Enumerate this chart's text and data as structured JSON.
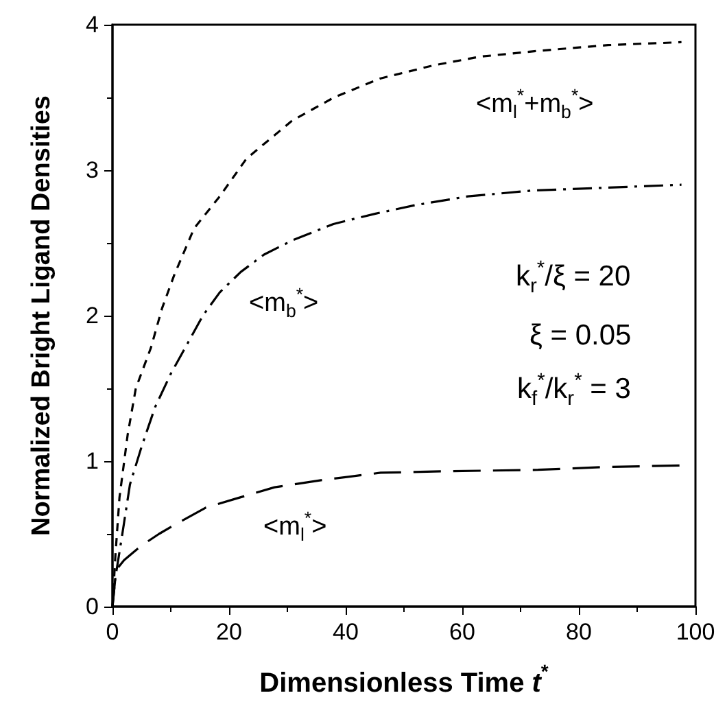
{
  "chart_data": {
    "type": "line",
    "xlabel": "Dimensionless Time t$^{*}$",
    "ylabel": "Normalized Bright Ligand Densities",
    "xlim": [
      0,
      100
    ],
    "ylim": [
      0,
      4
    ],
    "xticks": [
      0,
      20,
      40,
      60,
      80,
      100
    ],
    "yticks": [
      0,
      1,
      2,
      3,
      4
    ],
    "grid": false,
    "marker": "none",
    "series": [
      {
        "color": "#000000",
        "line_style": "dashed",
        "x": [
          0,
          0.5,
          1.2,
          2.6,
          4,
          6.6,
          8.5,
          10.6,
          14,
          18.4,
          23,
          30.8,
          38,
          45.9,
          55,
          63,
          73,
          85,
          97.6
        ],
        "values": [
          0,
          0.35,
          0.75,
          1.18,
          1.5,
          1.78,
          2.05,
          2.28,
          2.6,
          2.82,
          3.08,
          3.34,
          3.5,
          3.63,
          3.72,
          3.78,
          3.82,
          3.86,
          3.88
        ]
      },
      {
        "color": "#000000",
        "line_style": "dashdot",
        "x": [
          0,
          0.5,
          1.5,
          3,
          5,
          7.3,
          10,
          12.9,
          15.5,
          18.4,
          22,
          26,
          31,
          37.9,
          45,
          52,
          61,
          72,
          85,
          97.6
        ],
        "values": [
          0,
          0.2,
          0.45,
          0.84,
          1.1,
          1.37,
          1.6,
          1.81,
          2.0,
          2.16,
          2.3,
          2.42,
          2.52,
          2.63,
          2.7,
          2.76,
          2.82,
          2.86,
          2.88,
          2.9
        ]
      },
      {
        "color": "#000000",
        "line_style": "longdash",
        "x": [
          0,
          0.5,
          1,
          2,
          3.5,
          5,
          8,
          11,
          16,
          21,
          27.8,
          36,
          46,
          57,
          73,
          85,
          97.6
        ],
        "values": [
          0,
          0.2,
          0.27,
          0.32,
          0.37,
          0.42,
          0.5,
          0.57,
          0.68,
          0.74,
          0.82,
          0.87,
          0.92,
          0.93,
          0.94,
          0.96,
          0.97
        ]
      }
    ],
    "annotations": [
      "<m$_{l}$$^{*}$+m$_{b}$$^{*}$>",
      "<m$_{b}$$^{*}$>",
      "<m$_{l}$$^{*}$>",
      "k$_{r}$$^{*}$/ξ = 20",
      "ξ = 0.05",
      "k$_{f}$$^{*}$/k$_{r}$$^{*}$ = 3"
    ]
  }
}
